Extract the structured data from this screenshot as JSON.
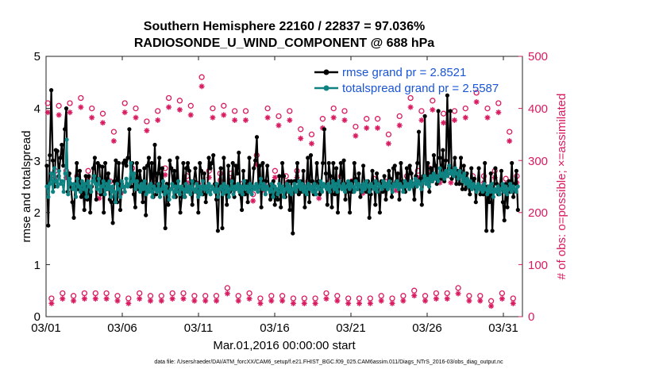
{
  "chart_data": {
    "type": "line",
    "title": "Southern Hemisphere 22160 / 22837 = 97.036%",
    "subtitle": "RADIOSONDE_U_WIND_COMPONENT @ 688 hPa",
    "xlabel": "Mar.01,2016 00:00:00 start",
    "ylabel_left": "rmse and totalspread",
    "ylabel_right": "# of obs: o=possible; ×=assimilated",
    "xlim": [
      0,
      31.25
    ],
    "ylim_left": [
      0,
      5
    ],
    "ylim_right": [
      0,
      500
    ],
    "x_ticks": [
      0,
      5,
      10,
      15,
      20,
      25,
      30
    ],
    "x_tick_labels": [
      "03/01",
      "03/06",
      "03/11",
      "03/16",
      "03/21",
      "03/26",
      "03/31"
    ],
    "y_ticks_left": [
      "0",
      "1",
      "2",
      "3",
      "4",
      "5"
    ],
    "y_ticks_right": [
      "0",
      "100",
      "200",
      "300",
      "400",
      "500"
    ],
    "series": [
      {
        "name": "rmse grand pr = 2.8521",
        "color": "#000000",
        "axis": "left",
        "marker": "filled-circle",
        "values": [
          2.9,
          1.75,
          3.1,
          4.35,
          3.0,
          2.5,
          3.2,
          3.18,
          2.7,
          3.05,
          3.3,
          2.9,
          3.6,
          4.0,
          2.4,
          2.75,
          2.5,
          2.2,
          1.9,
          2.55,
          2.95,
          2.45,
          2.8,
          2.3,
          2.55,
          2.05,
          2.7,
          2.25,
          2.7,
          2.0,
          2.5,
          2.85,
          3.05,
          2.25,
          2.95,
          2.9,
          2.35,
          2.88,
          2.0,
          2.95,
          2.45,
          2.75,
          2.25,
          2.2,
          1.8,
          2.6,
          3.0,
          2.2,
          2.95,
          2.05,
          2.55,
          2.95,
          3.0,
          2.9,
          3.05,
          3.6,
          2.5,
          2.95,
          2.35,
          2.1,
          2.95,
          2.45,
          2.8,
          2.6,
          2.2,
          2.85,
          1.95,
          2.9,
          3.05,
          2.55,
          2.95,
          2.3,
          3.3,
          2.35,
          2.75,
          3.05,
          2.45,
          2.85,
          2.4,
          1.7,
          2.55,
          2.15,
          3.0,
          2.85,
          2.55,
          2.8,
          2.3,
          3.05,
          2.45,
          2.0,
          2.3,
          2.95,
          2.3,
          2.85,
          2.95,
          2.8,
          2.45,
          2.15,
          2.6,
          2.85,
          2.55,
          2.0,
          2.95,
          2.8,
          2.35,
          2.75,
          2.2,
          2.45,
          3.05,
          2.85,
          2.95,
          3.1,
          2.55,
          2.25,
          1.65,
          2.5,
          2.85,
          1.7,
          3.05,
          2.45,
          2.15,
          2.9,
          2.4,
          2.45,
          2.95,
          2.3,
          2.9,
          2.75,
          3.15,
          2.35,
          2.05,
          2.8,
          2.35,
          2.6,
          2.2,
          3.05,
          2.45,
          2.45,
          2.85,
          3.0,
          3.45,
          2.55,
          2.9,
          2.1,
          2.95,
          2.5,
          2.6,
          2.9,
          2.5,
          2.25,
          2.4,
          2.6,
          2.15,
          2.45,
          2.25,
          2.7,
          2.1,
          2.95,
          2.7,
          2.3,
          2.45,
          2.6,
          2.05,
          2.6,
          1.6,
          2.6,
          2.6,
          2.95,
          2.35,
          2.6,
          2.4,
          2.8,
          2.1,
          2.5,
          3.05,
          2.2,
          3.1,
          2.6,
          2.35,
          2.55,
          2.95,
          2.6,
          2.35,
          2.55,
          2.95,
          3.6,
          2.75,
          2.15,
          2.95,
          2.7,
          2.1,
          2.95,
          2.35,
          2.85,
          2.0,
          2.55,
          2.95,
          2.55,
          3.0,
          2.25,
          2.55,
          2.4,
          2.0,
          2.6,
          2.4,
          2.95,
          2.65,
          2.45,
          2.75,
          2.3,
          2.5,
          2.9,
          2.5,
          2.4,
          2.6,
          1.9,
          2.35,
          2.8,
          2.55,
          2.15,
          2.75,
          2.55,
          2.0,
          2.6,
          2.4,
          2.7,
          2.25,
          2.5,
          2.8,
          2.65,
          2.3,
          2.85,
          2.9,
          2.6,
          2.75,
          2.25,
          2.95,
          2.6,
          2.45,
          2.4,
          2.85,
          2.55,
          2.9,
          2.75,
          2.5,
          2.25,
          2.7,
          2.95,
          3.55,
          2.65,
          2.15,
          2.7,
          3.85,
          2.55,
          2.95,
          2.4,
          2.85,
          2.6,
          3.1,
          2.9,
          2.55,
          3.95,
          3.05,
          2.65,
          3.2,
          2.6,
          3.0,
          4.25,
          2.85,
          3.95,
          2.65,
          2.8,
          3.05,
          2.55,
          2.8,
          2.55,
          3.05,
          2.45,
          2.9,
          2.45,
          2.75,
          2.5,
          2.35,
          2.85,
          2.5,
          2.65,
          2.2,
          2.5,
          2.85,
          2.35,
          2.5,
          2.35,
          2.95,
          1.65,
          2.5,
          2.2,
          2.75,
          1.65,
          2.45,
          2.85,
          2.55,
          2.35,
          2.5,
          2.8,
          2.2,
          1.85,
          2.55,
          2.1,
          2.6,
          2.4,
          2.95,
          2.3,
          2.55,
          2.8,
          2.05
        ]
      },
      {
        "name": "totalspread grand pr = 2.5587",
        "color": "#0f8282",
        "axis": "left",
        "marker": "filled-circle",
        "values": [
          2.5,
          2.3,
          2.55,
          2.75,
          2.4,
          2.85,
          2.6,
          2.5,
          2.8,
          2.55,
          2.6,
          2.4,
          2.75,
          3.4,
          2.35,
          2.65,
          2.55,
          2.45,
          2.55,
          2.3,
          2.65,
          2.5,
          2.4,
          2.6,
          2.45,
          2.55,
          2.3,
          2.6,
          2.5,
          2.4,
          2.6,
          2.7,
          2.55,
          2.45,
          2.65,
          2.4,
          2.5,
          2.6,
          2.35,
          2.55,
          2.45,
          2.6,
          2.3,
          2.5,
          2.4,
          2.2,
          2.55,
          2.45,
          2.3,
          2.6,
          2.5,
          2.4,
          2.65,
          2.5,
          2.55,
          2.95,
          2.6,
          2.75,
          2.45,
          2.6,
          2.5,
          2.4,
          2.55,
          2.45,
          2.6,
          2.35,
          2.5,
          2.4,
          2.55,
          2.3,
          2.5,
          2.45,
          2.4,
          2.55,
          2.3,
          2.45,
          2.6,
          2.35,
          2.5,
          2.4,
          2.25,
          2.45,
          2.55,
          2.3,
          2.5,
          2.4,
          2.6,
          2.35,
          2.5,
          2.45,
          2.3,
          2.55,
          2.4,
          2.5,
          2.35,
          2.6,
          2.45,
          2.4,
          2.55,
          2.3,
          2.5,
          2.35,
          2.6,
          2.45,
          2.5,
          2.4,
          2.55,
          2.35,
          2.5,
          2.45,
          2.4,
          2.55,
          2.3,
          2.45,
          2.5,
          2.35,
          2.55,
          2.4,
          2.5,
          2.3,
          2.45,
          2.6,
          2.35,
          2.5,
          2.45,
          2.55,
          2.4,
          2.5,
          2.35,
          2.6,
          2.45,
          2.5,
          2.4,
          2.55,
          2.35,
          2.5,
          2.45,
          2.55,
          2.4,
          2.5,
          2.65,
          2.45,
          2.55,
          2.35,
          2.5,
          2.45,
          2.4,
          2.55,
          2.3,
          2.5,
          2.45,
          2.35,
          2.55,
          2.4,
          2.5,
          2.3,
          2.45,
          2.55,
          2.4,
          2.5,
          2.35,
          2.45,
          2.55,
          2.4,
          2.5,
          2.6,
          2.45,
          2.55,
          2.4,
          2.5,
          2.35,
          2.55,
          2.45,
          2.5,
          2.4,
          2.55,
          2.35,
          2.5,
          2.45,
          2.6,
          2.4,
          2.55,
          2.5,
          2.45,
          2.55,
          2.4,
          2.5,
          2.6,
          2.45,
          2.55,
          2.4,
          2.6,
          2.5,
          2.45,
          2.55,
          2.4,
          2.5,
          2.6,
          2.45,
          2.55,
          2.5,
          2.4,
          2.6,
          2.45,
          2.55,
          2.5,
          2.4,
          2.55,
          2.45,
          2.6,
          2.5,
          2.4,
          2.55,
          2.5,
          2.45,
          2.6,
          2.4,
          2.55,
          2.5,
          2.45,
          2.6,
          2.5,
          2.55,
          2.45,
          2.6,
          2.5,
          2.4,
          2.55,
          2.5,
          2.6,
          2.45,
          2.55,
          2.5,
          2.4,
          2.6,
          2.5,
          2.55,
          2.45,
          2.6,
          2.5,
          2.55,
          2.65,
          2.5,
          2.6,
          2.55,
          2.45,
          2.6,
          2.7,
          2.55,
          2.65,
          2.5,
          2.7,
          2.6,
          2.75,
          2.65,
          2.7,
          2.6,
          2.85,
          2.7,
          2.75,
          2.65,
          2.8,
          2.7,
          2.9,
          2.75,
          2.8,
          2.7,
          2.85,
          2.75,
          2.65,
          2.8,
          2.7,
          2.6,
          2.75,
          2.55,
          2.65,
          2.5,
          2.6,
          2.45,
          2.55,
          2.5,
          2.4,
          2.55,
          2.45,
          2.5,
          2.4,
          2.55,
          2.45,
          2.35,
          2.5,
          2.4,
          2.55,
          2.3,
          2.45,
          2.4,
          2.5,
          2.35,
          2.45,
          2.55,
          2.4,
          2.5,
          2.35,
          2.45,
          2.55,
          2.4,
          2.5,
          2.45,
          2.4,
          2.5
        ]
      },
      {
        "name": "possible",
        "color": "#d81b60",
        "axis": "right",
        "marker": "open-circle",
        "values": [
          410,
          35,
          280,
          405,
          45,
          280,
          410,
          40,
          270,
          420,
          45,
          280,
          400,
          45,
          240,
          390,
          45,
          260,
          355,
          40,
          250,
          410,
          35,
          285,
          400,
          45,
          255,
          375,
          40,
          265,
          395,
          40,
          285,
          420,
          45,
          260,
          415,
          45,
          270,
          405,
          40,
          255,
          460,
          40,
          280,
          400,
          40,
          275,
          405,
          55,
          275,
          395,
          40,
          255,
          395,
          45,
          235,
          310,
          35,
          255,
          400,
          40,
          280,
          385,
          40,
          270,
          395,
          35,
          280,
          360,
          35,
          260,
          350,
          35,
          240,
          380,
          45,
          260,
          400,
          40,
          270,
          395,
          35,
          260,
          365,
          35,
          250,
          380,
          35,
          265,
          380,
          40,
          260,
          350,
          35,
          255,
          385,
          40,
          270,
          420,
          50,
          280,
          395,
          40,
          285,
          415,
          45,
          270,
          390,
          45,
          270,
          395,
          55,
          285,
          400,
          40,
          270,
          430,
          40,
          270,
          400,
          30,
          280,
          410,
          45,
          265,
          355,
          35,
          270
        ]
      },
      {
        "name": "assimilated",
        "color": "#d81b60",
        "axis": "right",
        "marker": "asterisk",
        "values": [
          400,
          33,
          275,
          395,
          42,
          275,
          400,
          38,
          265,
          410,
          42,
          275,
          390,
          42,
          235,
          380,
          42,
          255,
          345,
          38,
          245,
          400,
          33,
          280,
          390,
          42,
          250,
          365,
          38,
          260,
          385,
          38,
          280,
          410,
          42,
          255,
          405,
          42,
          265,
          395,
          38,
          250,
          450,
          38,
          275,
          390,
          38,
          270,
          395,
          52,
          270,
          385,
          38,
          250,
          385,
          42,
          230,
          300,
          33,
          250,
          390,
          38,
          275,
          375,
          38,
          265,
          385,
          33,
          275,
          350,
          33,
          255,
          340,
          33,
          235,
          370,
          42,
          255,
          390,
          38,
          265,
          385,
          33,
          255,
          355,
          33,
          245,
          370,
          33,
          260,
          370,
          38,
          255,
          340,
          33,
          250,
          375,
          38,
          265,
          410,
          48,
          275,
          385,
          38,
          280,
          405,
          42,
          265,
          380,
          42,
          265,
          385,
          52,
          280,
          390,
          38,
          265,
          420,
          38,
          265,
          390,
          28,
          275,
          400,
          42,
          260,
          345,
          33,
          265
        ]
      }
    ],
    "legend": [
      "rmse grand pr = 2.8521",
      "totalspread grand pr = 2.5587"
    ],
    "legend_location": "top-right",
    "grid": false,
    "footnote": "data file: /Users/raeder/DAI/ATM_forcXX/CAM6_setup/f.e21.FHIST_BGC.f09_025.CAM6assim.011/Diags_NTrS_2016-03/obs_diag_output.nc"
  }
}
